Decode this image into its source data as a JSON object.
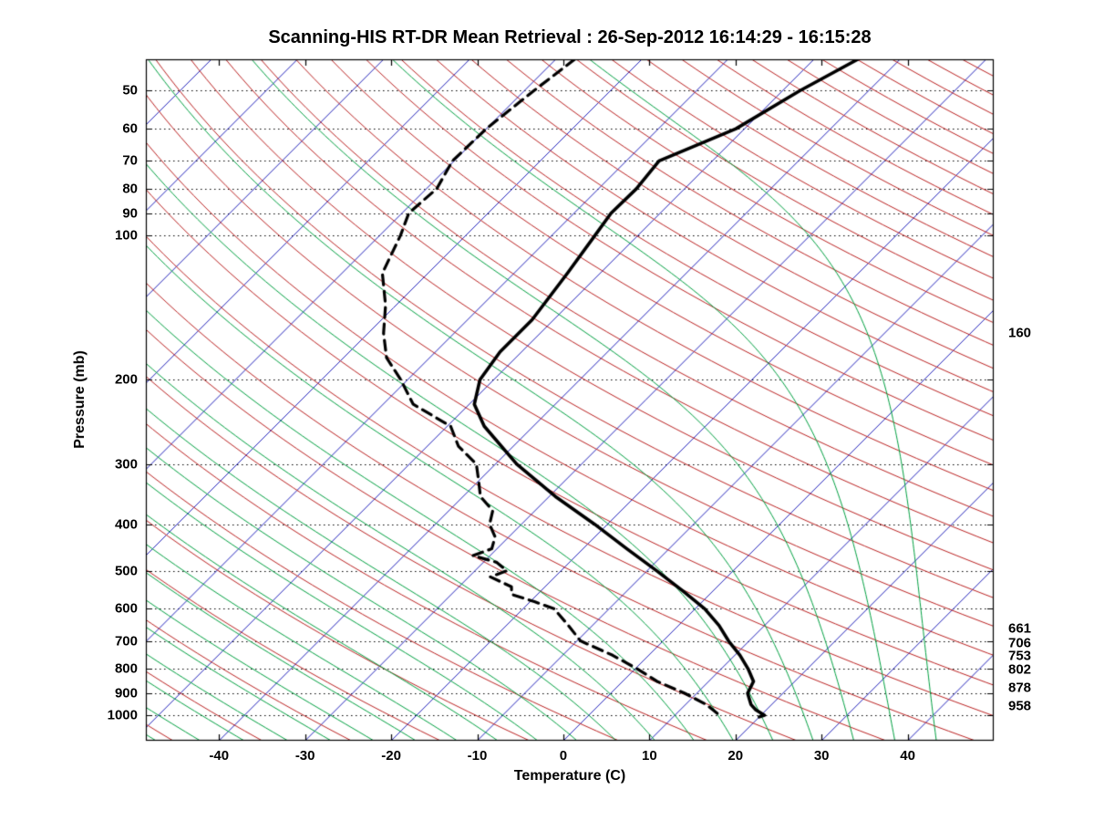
{
  "chart_data": {
    "type": "line",
    "variant": "skew-t-log-p-sounding",
    "title": "Scanning-HIS RT-DR Mean Retrieval : 26-Sep-2012 16:14:29 - 16:15:28",
    "xlabel": "Temperature (C)",
    "ylabel": "Pressure (mb)",
    "x_ticks": [
      -40,
      -30,
      -20,
      -10,
      0,
      10,
      20,
      30,
      40
    ],
    "y_ticks": [
      50,
      60,
      70,
      80,
      90,
      100,
      200,
      300,
      400,
      500,
      600,
      700,
      800,
      900,
      1000
    ],
    "x_range_c": [
      -48.5,
      50
    ],
    "pressure_range_mb": [
      43,
      1130
    ],
    "grid": "horizontal-dotted",
    "grid_color": "#000000",
    "right_pressure_labels": [
      160,
      661,
      706,
      753,
      802,
      878,
      958
    ],
    "background_lines": {
      "isotherms": {
        "color": "#2222bb",
        "start_c": -130,
        "end_c": 45,
        "step_c": 10
      },
      "dry_adiabats": {
        "color": "#bb2222",
        "start_k": 220,
        "end_k": 600,
        "step_k": 10
      },
      "moist_adiabats": {
        "color": "#00a040",
        "start_c": -55,
        "end_c": 40,
        "step_c": 5
      }
    },
    "series": [
      {
        "name": "temperature",
        "line": "solid",
        "color": "#000000",
        "width": 3.6,
        "pressure_mb": [
          43,
          50,
          60,
          70,
          80,
          90,
          100,
          120,
          150,
          175,
          200,
          225,
          250,
          300,
          350,
          400,
          450,
          500,
          550,
          600,
          650,
          700,
          750,
          800,
          850,
          900,
          950,
          975,
          1000,
          1008
        ],
        "temp_c": [
          -44.9,
          -48.0,
          -51.0,
          -56.2,
          -55.6,
          -55.7,
          -55.0,
          -53.8,
          -52.5,
          -52.5,
          -51.6,
          -49.4,
          -45.7,
          -37.5,
          -29.3,
          -21.5,
          -14.9,
          -8.9,
          -3.6,
          1.1,
          4.7,
          7.6,
          10.6,
          13.1,
          15.2,
          15.9,
          17.6,
          18.8,
          20.4,
          20.0
        ]
      },
      {
        "name": "dew_point",
        "line": "dashed",
        "color": "#000000",
        "width": 3.2,
        "pressure_mb": [
          43,
          50,
          60,
          70,
          80,
          90,
          100,
          120,
          140,
          160,
          180,
          200,
          225,
          250,
          275,
          300,
          325,
          350,
          375,
          400,
          425,
          450,
          465,
          480,
          500,
          515,
          540,
          560,
          580,
          600,
          650,
          700,
          750,
          800,
          850,
          900,
          950,
          1000,
          1010
        ],
        "temp_c": [
          -77.8,
          -78.9,
          -80.0,
          -80.2,
          -78.8,
          -79.2,
          -77.6,
          -75.3,
          -71.2,
          -68.2,
          -65.0,
          -60.8,
          -56.5,
          -49.6,
          -46.4,
          -42.2,
          -40.0,
          -38.0,
          -34.9,
          -33.7,
          -31.6,
          -30.6,
          -32.0,
          -28.5,
          -26.3,
          -27.5,
          -23.9,
          -23.0,
          -19.5,
          -16.4,
          -12.8,
          -9.6,
          -4.2,
          0.2,
          4.0,
          8.6,
          12.4,
          15.2,
          15.5
        ]
      }
    ]
  }
}
